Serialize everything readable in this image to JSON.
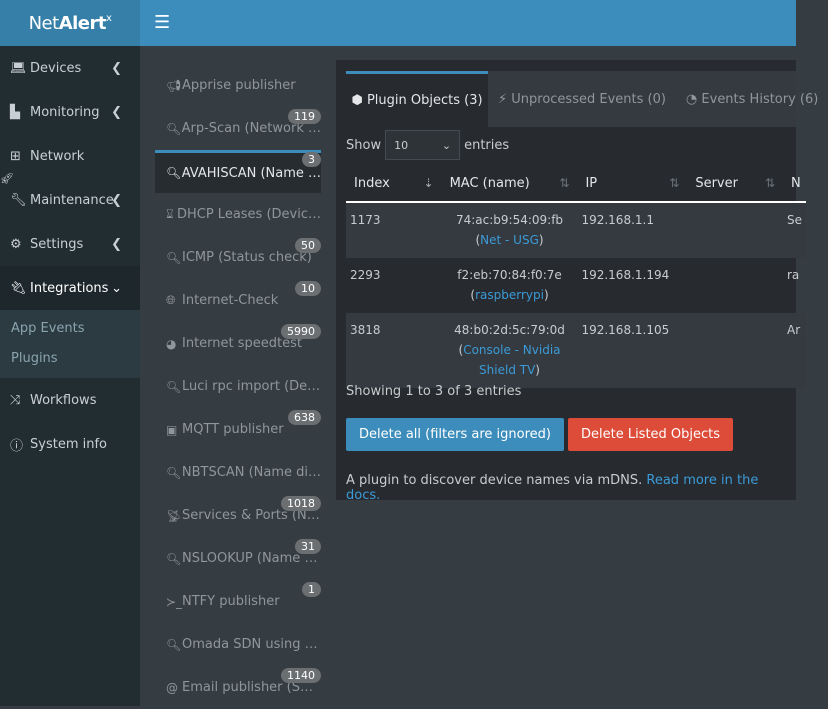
{
  "app": {
    "logo_pre": "Net",
    "logo_bold": "Alert",
    "logo_sup": "x"
  },
  "sidebar": {
    "items": [
      {
        "label": "Devices",
        "icon": "laptop-icon"
      },
      {
        "label": "Monitoring",
        "icon": "chart-icon"
      },
      {
        "label": "Network",
        "icon": "sitemap-icon"
      },
      {
        "label": "Maintenance",
        "icon": "wrench-icon"
      },
      {
        "label": "Settings",
        "icon": "gear-icon"
      },
      {
        "label": "Integrations",
        "icon": "plug-icon"
      },
      {
        "label": "Workflows",
        "icon": "shuffle-icon"
      },
      {
        "label": "System info",
        "icon": "info-icon"
      }
    ],
    "submenu": [
      "App Events",
      "Plugins"
    ]
  },
  "plugins": [
    {
      "label": "Apprise publisher",
      "icon": "bullhorn-icon",
      "badge": ""
    },
    {
      "label": "Arp-Scan (Network …",
      "icon": "search-icon",
      "badge": "119"
    },
    {
      "label": "AVAHISCAN (Name …",
      "icon": "search-icon",
      "badge": "3"
    },
    {
      "label": "DHCP Leases (Devic…",
      "icon": "hourglass-icon",
      "badge": ""
    },
    {
      "label": "ICMP (Status check)",
      "icon": "search-icon",
      "badge": "50"
    },
    {
      "label": "Internet-Check",
      "icon": "globe-icon",
      "badge": "10"
    },
    {
      "label": "Internet speedtest",
      "icon": "gauge-icon",
      "badge": "5990"
    },
    {
      "label": "Luci rpc import (De…",
      "icon": "search-icon",
      "badge": ""
    },
    {
      "label": "MQTT publisher",
      "icon": "rss-icon",
      "badge": "638"
    },
    {
      "label": "NBTSCAN (Name di…",
      "icon": "search-icon",
      "badge": ""
    },
    {
      "label": "Services & Ports (N…",
      "icon": "satellite-icon",
      "badge": "1018"
    },
    {
      "label": "NSLOOKUP (Name …",
      "icon": "search-icon",
      "badge": "31"
    },
    {
      "label": "NTFY publisher",
      "icon": "terminal-icon",
      "badge": "1"
    },
    {
      "label": "Omada SDN using …",
      "icon": "search-icon",
      "badge": ""
    },
    {
      "label": "Email publisher (S…",
      "icon": "at-icon",
      "badge": "1140"
    }
  ],
  "tabs": [
    {
      "label": "Plugin Objects (3)",
      "icon": "cube-icon"
    },
    {
      "label": "Unprocessed Events (0)",
      "icon": "bolt-icon"
    },
    {
      "label": "Events History (6)",
      "icon": "clock-icon"
    }
  ],
  "table": {
    "show_label": "Show",
    "entries_label": "entries",
    "page_size": "10",
    "columns": [
      "Index",
      "MAC (name)",
      "IP",
      "Server",
      "N"
    ],
    "rows": [
      {
        "index": "1173",
        "mac": "74:ac:b9:54:09:fb",
        "name": "Net - USG",
        "ip": "192.168.1.1",
        "server": "",
        "n": "Se"
      },
      {
        "index": "2293",
        "mac": "f2:eb:70:84:f0:7e",
        "name": "raspberrypi",
        "ip": "192.168.1.194",
        "server": "",
        "n": "ra"
      },
      {
        "index": "3818",
        "mac": "48:b0:2d:5c:79:0d",
        "name": "Console - Nvidia Shield TV",
        "ip": "192.168.1.105",
        "server": "",
        "n": "Ar"
      }
    ],
    "info": "Showing 1 to 3 of 3 entries"
  },
  "buttons": {
    "delete_all": "Delete all (filters are ignored)",
    "delete_listed": "Delete Listed Objects"
  },
  "colors": {
    "primary": "#3c8dbc",
    "danger": "#dd4b39"
  },
  "description": {
    "text": "A plugin to discover device names via mDNS.",
    "link": "Read more in the docs."
  }
}
